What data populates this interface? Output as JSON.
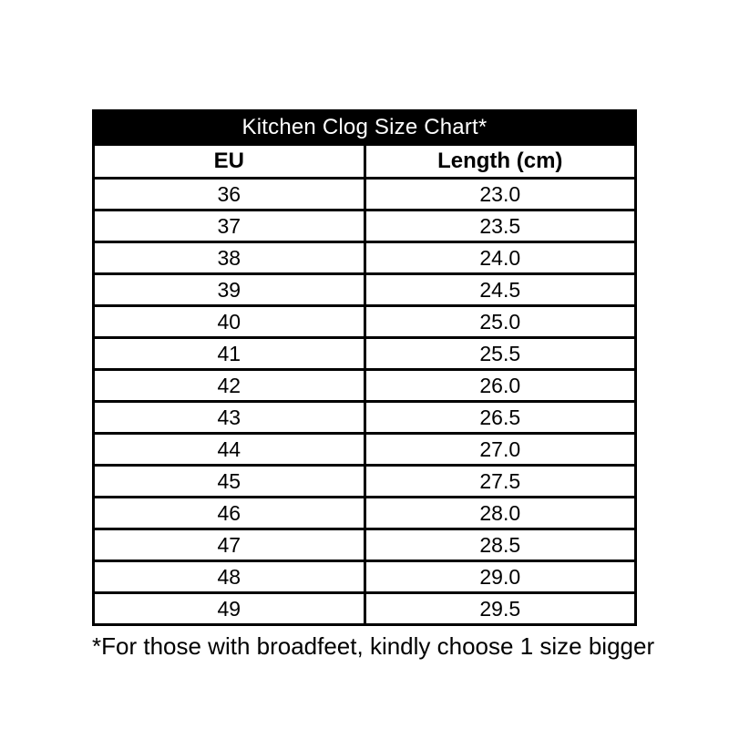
{
  "colors": {
    "page_background": "#ffffff",
    "title_background": "#000000",
    "title_text": "#ffffff",
    "border": "#000000",
    "body_text": "#000000"
  },
  "chart_data": {
    "type": "table",
    "title": "Kitchen Clog Size Chart*",
    "columns": [
      "EU",
      "Length (cm)"
    ],
    "rows": [
      [
        "36",
        "23.0"
      ],
      [
        "37",
        "23.5"
      ],
      [
        "38",
        "24.0"
      ],
      [
        "39",
        "24.5"
      ],
      [
        "40",
        "25.0"
      ],
      [
        "41",
        "25.5"
      ],
      [
        "42",
        "26.0"
      ],
      [
        "43",
        "26.5"
      ],
      [
        "44",
        "27.0"
      ],
      [
        "45",
        "27.5"
      ],
      [
        "46",
        "28.0"
      ],
      [
        "47",
        "28.5"
      ],
      [
        "48",
        "29.0"
      ],
      [
        "49",
        "29.5"
      ]
    ],
    "footnote": "*For those with broadfeet, kindly choose 1 size bigger"
  }
}
